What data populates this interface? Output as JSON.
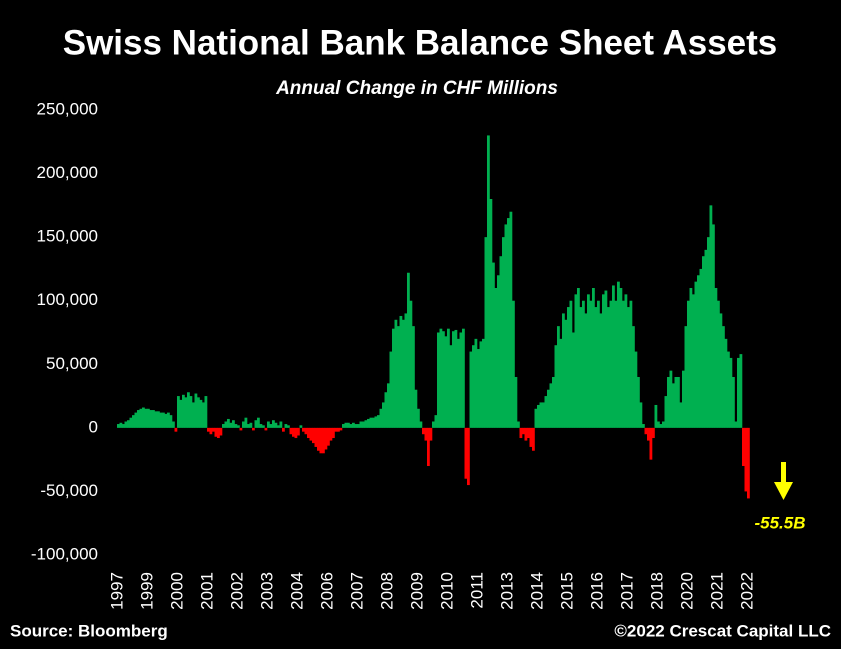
{
  "chart_data": {
    "type": "bar",
    "title": "Swiss National Bank Balance Sheet Assets",
    "subtitle": "Annual Change in CHF Millions",
    "source": "Source: Bloomberg",
    "credit": "©2022 Crescat Capital LLC",
    "annotation": {
      "text": "-55.5B",
      "color": "#ffff00"
    },
    "color": "#00b050",
    "negative_color": "#ff0000",
    "grid": false,
    "ylim": [
      -100000,
      250000
    ],
    "yticks": [
      {
        "value": -100000,
        "label": "-100,000"
      },
      {
        "value": -50000,
        "label": "-50,000"
      },
      0,
      {
        "value": 50000,
        "label": "50,000"
      },
      {
        "value": 100000,
        "label": "100,000"
      },
      {
        "value": 150000,
        "label": "150,000"
      },
      {
        "value": 200000,
        "label": "200,000"
      },
      {
        "value": 250000,
        "label": "250,000"
      }
    ],
    "categories": [
      "1997",
      null,
      null,
      null,
      null,
      null,
      null,
      null,
      null,
      null,
      null,
      null,
      "1999",
      null,
      null,
      null,
      null,
      null,
      null,
      null,
      null,
      null,
      null,
      null,
      "2000",
      null,
      null,
      null,
      null,
      null,
      null,
      null,
      null,
      null,
      null,
      null,
      "2001",
      null,
      null,
      null,
      null,
      null,
      null,
      null,
      null,
      null,
      null,
      null,
      "2002",
      null,
      null,
      null,
      null,
      null,
      null,
      null,
      null,
      null,
      null,
      null,
      "2003",
      null,
      null,
      null,
      null,
      null,
      null,
      null,
      null,
      null,
      null,
      null,
      "2004",
      null,
      null,
      null,
      null,
      null,
      null,
      null,
      null,
      null,
      null,
      null,
      "2006",
      null,
      null,
      null,
      null,
      null,
      null,
      null,
      null,
      null,
      null,
      null,
      "2007",
      null,
      null,
      null,
      null,
      null,
      null,
      null,
      null,
      null,
      null,
      null,
      "2008",
      null,
      null,
      null,
      null,
      null,
      null,
      null,
      null,
      null,
      null,
      null,
      "2009",
      null,
      null,
      null,
      null,
      null,
      null,
      null,
      null,
      null,
      null,
      null,
      "2010",
      null,
      null,
      null,
      null,
      null,
      null,
      null,
      null,
      null,
      null,
      null,
      "2011",
      null,
      null,
      null,
      null,
      null,
      null,
      null,
      null,
      null,
      null,
      null,
      "2013",
      null,
      null,
      null,
      null,
      null,
      null,
      null,
      null,
      null,
      null,
      null,
      "2014",
      null,
      null,
      null,
      null,
      null,
      null,
      null,
      null,
      null,
      null,
      null,
      "2015",
      null,
      null,
      null,
      null,
      null,
      null,
      null,
      null,
      null,
      null,
      null,
      "2016",
      null,
      null,
      null,
      null,
      null,
      null,
      null,
      null,
      null,
      null,
      null,
      "2017",
      null,
      null,
      null,
      null,
      null,
      null,
      null,
      null,
      null,
      null,
      null,
      "2018",
      null,
      null,
      null,
      null,
      null,
      null,
      null,
      null,
      null,
      null,
      null,
      "2020",
      null,
      null,
      null,
      null,
      null,
      null,
      null,
      null,
      null,
      null,
      null,
      "2021",
      null,
      null,
      null,
      null,
      null,
      null,
      null,
      null,
      null,
      null,
      null,
      "2022"
    ],
    "values": [
      3000,
      4000,
      3000,
      5000,
      6000,
      8000,
      10000,
      12000,
      14000,
      15000,
      16000,
      15000,
      15000,
      14000,
      14000,
      13000,
      13000,
      12000,
      12000,
      11000,
      12000,
      10000,
      5000,
      -3000,
      25000,
      22000,
      26000,
      24000,
      28000,
      25000,
      20000,
      27000,
      24000,
      22000,
      20000,
      25000,
      -3000,
      -5000,
      -3000,
      -7000,
      -8000,
      -6000,
      3000,
      5000,
      7000,
      4000,
      6000,
      3000,
      2000,
      -2000,
      5000,
      8000,
      3000,
      4000,
      -2000,
      6000,
      8000,
      3000,
      2000,
      -2000,
      5000,
      3000,
      6000,
      4000,
      2000,
      5000,
      -3000,
      3000,
      2000,
      -5000,
      -7000,
      -8000,
      -6000,
      2000,
      -3000,
      -5000,
      -8000,
      -10000,
      -12000,
      -15000,
      -18000,
      -20000,
      -20000,
      -17000,
      -14000,
      -10000,
      -8000,
      -3000,
      -3000,
      -2000,
      3000,
      4000,
      4000,
      3000,
      4000,
      3000,
      3000,
      5000,
      5000,
      6000,
      7000,
      8000,
      8000,
      9000,
      10000,
      15000,
      20000,
      28000,
      35000,
      60000,
      78000,
      85000,
      80000,
      88000,
      85000,
      90000,
      122000,
      100000,
      80000,
      30000,
      15000,
      5000,
      -5000,
      -10000,
      -30000,
      -10000,
      5000,
      10000,
      75000,
      78000,
      76000,
      72000,
      78000,
      65000,
      76000,
      77000,
      70000,
      75000,
      78000,
      -40000,
      -45000,
      60000,
      65000,
      70000,
      62000,
      68000,
      70000,
      150000,
      230000,
      180000,
      130000,
      110000,
      120000,
      135000,
      150000,
      160000,
      165000,
      170000,
      100000,
      40000,
      5000,
      -8000,
      -5000,
      -10000,
      -8000,
      -15000,
      -18000,
      15000,
      18000,
      20000,
      20000,
      25000,
      30000,
      35000,
      40000,
      65000,
      80000,
      70000,
      90000,
      85000,
      95000,
      100000,
      75000,
      105000,
      110000,
      95000,
      100000,
      90000,
      105000,
      100000,
      110000,
      95000,
      100000,
      90000,
      105000,
      108000,
      95000,
      100000,
      112000,
      100000,
      115000,
      110000,
      100000,
      105000,
      95000,
      100000,
      80000,
      60000,
      40000,
      20000,
      3000,
      -5000,
      -10000,
      -25000,
      -8000,
      18000,
      5000,
      3000,
      5000,
      25000,
      40000,
      45000,
      35000,
      40000,
      40000,
      20000,
      45000,
      80000,
      100000,
      110000,
      105000,
      115000,
      120000,
      125000,
      135000,
      140000,
      150000,
      175000,
      160000,
      110000,
      100000,
      90000,
      80000,
      70000,
      60000,
      55000,
      40000,
      5000,
      55000,
      58000,
      -30000,
      -50000,
      -55500
    ]
  }
}
